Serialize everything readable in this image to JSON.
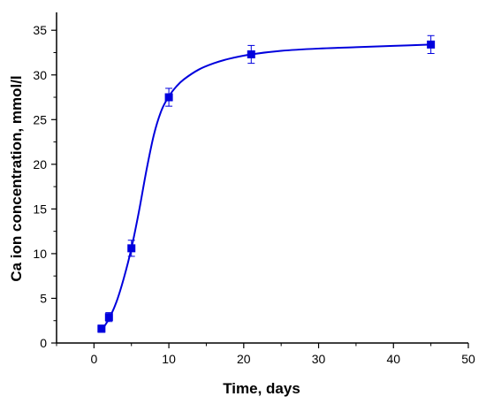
{
  "chart_data": {
    "type": "scatter",
    "xlabel": "Time, days",
    "ylabel": "Ca ion concentration, mmol/l",
    "xlim": [
      -5,
      50
    ],
    "ylim": [
      0,
      37
    ],
    "xticks": [
      0,
      10,
      20,
      30,
      40,
      50
    ],
    "yticks": [
      0,
      5,
      10,
      15,
      20,
      25,
      30,
      35
    ],
    "grid": false,
    "colors": {
      "series": "#0000dd",
      "axis": "#000000"
    },
    "series": [
      {
        "points": [
          {
            "x": 1,
            "y": 1.6,
            "err": 0.4
          },
          {
            "x": 2,
            "y": 2.9,
            "err": 0.5
          },
          {
            "x": 5,
            "y": 10.6,
            "err": 0.9
          },
          {
            "x": 10,
            "y": 27.5,
            "err": 1.0
          },
          {
            "x": 21,
            "y": 32.3,
            "err": 1.0
          },
          {
            "x": 45,
            "y": 33.4,
            "err": 1.0
          }
        ],
        "fit_curve": [
          [
            1,
            1.4
          ],
          [
            2,
            2.7
          ],
          [
            3,
            4.6
          ],
          [
            4,
            7.3
          ],
          [
            5,
            10.6
          ],
          [
            6,
            14.7
          ],
          [
            7,
            19.3
          ],
          [
            8,
            23.3
          ],
          [
            9,
            26.0
          ],
          [
            10,
            27.6
          ],
          [
            11,
            28.7
          ],
          [
            12,
            29.5
          ],
          [
            14,
            30.6
          ],
          [
            16,
            31.3
          ],
          [
            18,
            31.8
          ],
          [
            21,
            32.3
          ],
          [
            25,
            32.7
          ],
          [
            30,
            32.95
          ],
          [
            35,
            33.1
          ],
          [
            40,
            33.25
          ],
          [
            45,
            33.4
          ]
        ]
      }
    ]
  }
}
